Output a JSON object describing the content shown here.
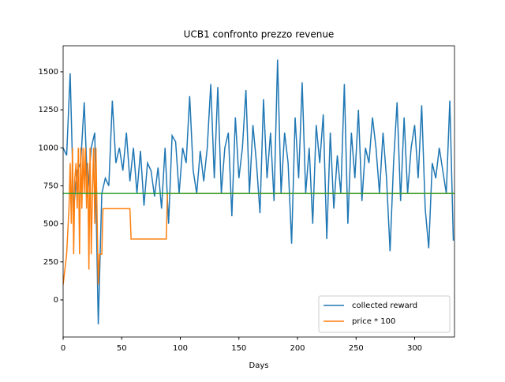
{
  "chart_data": {
    "type": "line",
    "title": "UCB1 confronto prezzo revenue",
    "xlabel": "Days",
    "xlim": [
      0,
      334
    ],
    "ylim": [
      -244,
      1671
    ],
    "xticks": [
      0,
      50,
      100,
      150,
      200,
      250,
      300
    ],
    "yticks": [
      0,
      250,
      500,
      750,
      1000,
      1250,
      1500
    ],
    "legend": "lower right",
    "series": [
      {
        "name": "collected reward",
        "color": "#1f77b4",
        "x": [
          0,
          3,
          6,
          9,
          12,
          15,
          18,
          21,
          24,
          27,
          30,
          33,
          36,
          39,
          42,
          45,
          48,
          51,
          54,
          57,
          60,
          63,
          66,
          69,
          72,
          75,
          78,
          81,
          84,
          87,
          90,
          93,
          96,
          99,
          102,
          105,
          108,
          111,
          114,
          117,
          120,
          123,
          126,
          129,
          132,
          135,
          138,
          141,
          144,
          147,
          150,
          153,
          156,
          159,
          162,
          165,
          168,
          171,
          174,
          177,
          180,
          183,
          186,
          189,
          192,
          195,
          198,
          201,
          204,
          207,
          210,
          213,
          216,
          219,
          222,
          225,
          228,
          231,
          234,
          237,
          240,
          243,
          246,
          249,
          252,
          255,
          258,
          261,
          264,
          267,
          270,
          273,
          276,
          279,
          282,
          285,
          288,
          291,
          294,
          297,
          300,
          303,
          306,
          309,
          312,
          315,
          318,
          321,
          324,
          327,
          330,
          333
        ],
        "values": [
          1000,
          950,
          1490,
          600,
          850,
          900,
          1300,
          700,
          1000,
          1100,
          -160,
          700,
          800,
          750,
          1310,
          900,
          1000,
          850,
          1100,
          780,
          1000,
          700,
          980,
          620,
          900,
          850,
          680,
          870,
          600,
          1000,
          500,
          1080,
          1040,
          700,
          1000,
          900,
          1340,
          850,
          700,
          980,
          780,
          1000,
          1420,
          800,
          1400,
          700,
          1000,
          1100,
          550,
          1200,
          800,
          1000,
          1380,
          700,
          1150,
          900,
          570,
          1320,
          800,
          1100,
          650,
          1580,
          700,
          1100,
          900,
          370,
          1200,
          800,
          1430,
          700,
          1000,
          500,
          1150,
          900,
          1220,
          400,
          1100,
          600,
          950,
          700,
          1420,
          500,
          1100,
          800,
          1250,
          650,
          1000,
          900,
          1200,
          1000,
          700,
          1100,
          800,
          320,
          900,
          1300,
          650,
          1200,
          700,
          1000,
          1150,
          800,
          1280,
          600,
          340,
          900,
          800,
          1000,
          850,
          700,
          1310,
          390
        ]
      },
      {
        "name": "price * 100",
        "color": "#ff7f0e",
        "x": [
          0,
          3,
          5,
          6,
          7,
          8,
          9,
          10,
          11,
          12,
          13,
          14,
          15,
          16,
          17,
          18,
          19,
          20,
          21,
          22,
          23,
          24,
          25,
          26,
          27,
          28,
          30,
          31,
          33,
          34,
          57,
          58,
          88,
          89,
          334
        ],
        "values": [
          100,
          300,
          600,
          900,
          500,
          1000,
          300,
          800,
          900,
          600,
          1000,
          300,
          1000,
          600,
          1000,
          700,
          1000,
          600,
          900,
          200,
          1000,
          300,
          700,
          1000,
          500,
          1000,
          100,
          300,
          300,
          600,
          600,
          400,
          400,
          700,
          700
        ]
      }
    ],
    "hlines": [
      {
        "value": 700,
        "color": "#2ca02c"
      }
    ]
  }
}
